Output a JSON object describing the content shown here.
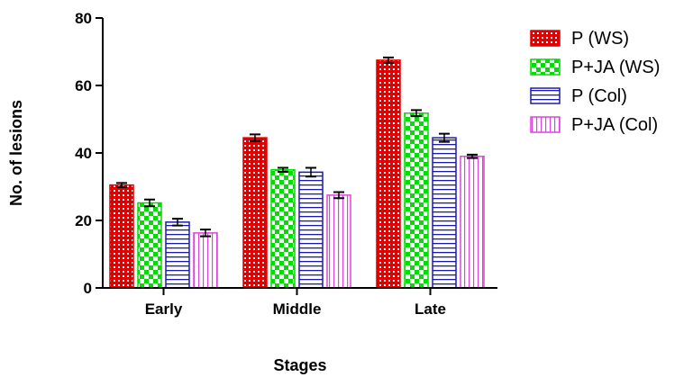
{
  "chart_data": {
    "type": "bar",
    "title": "",
    "xlabel": "Stages",
    "ylabel": "No. of lesions",
    "categories": [
      "Early",
      "Middle",
      "Late"
    ],
    "ylim": [
      0,
      80
    ],
    "yticks": [
      0,
      20,
      40,
      60,
      80
    ],
    "grid": false,
    "legend_position": "right",
    "series": [
      {
        "name": "P (WS)",
        "values": [
          30.5,
          44.5,
          67.5
        ],
        "errors": [
          0.6,
          1.0,
          0.8
        ],
        "color": "#e00000",
        "pattern": "dotted-grid"
      },
      {
        "name": "P+JA (WS)",
        "values": [
          25.2,
          35.0,
          51.8
        ],
        "errors": [
          1.0,
          0.6,
          0.9
        ],
        "color": "#00dd00",
        "pattern": "checker"
      },
      {
        "name": "P (Col)",
        "values": [
          19.5,
          34.3,
          44.5
        ],
        "errors": [
          1.0,
          1.3,
          1.2
        ],
        "color": "#1a1ab0",
        "pattern": "horizontal-lines"
      },
      {
        "name": "P+JA (Col)",
        "values": [
          16.3,
          27.5,
          39.0
        ],
        "errors": [
          1.0,
          0.9,
          0.5
        ],
        "color": "#dd44dd",
        "pattern": "vertical-lines"
      }
    ]
  }
}
